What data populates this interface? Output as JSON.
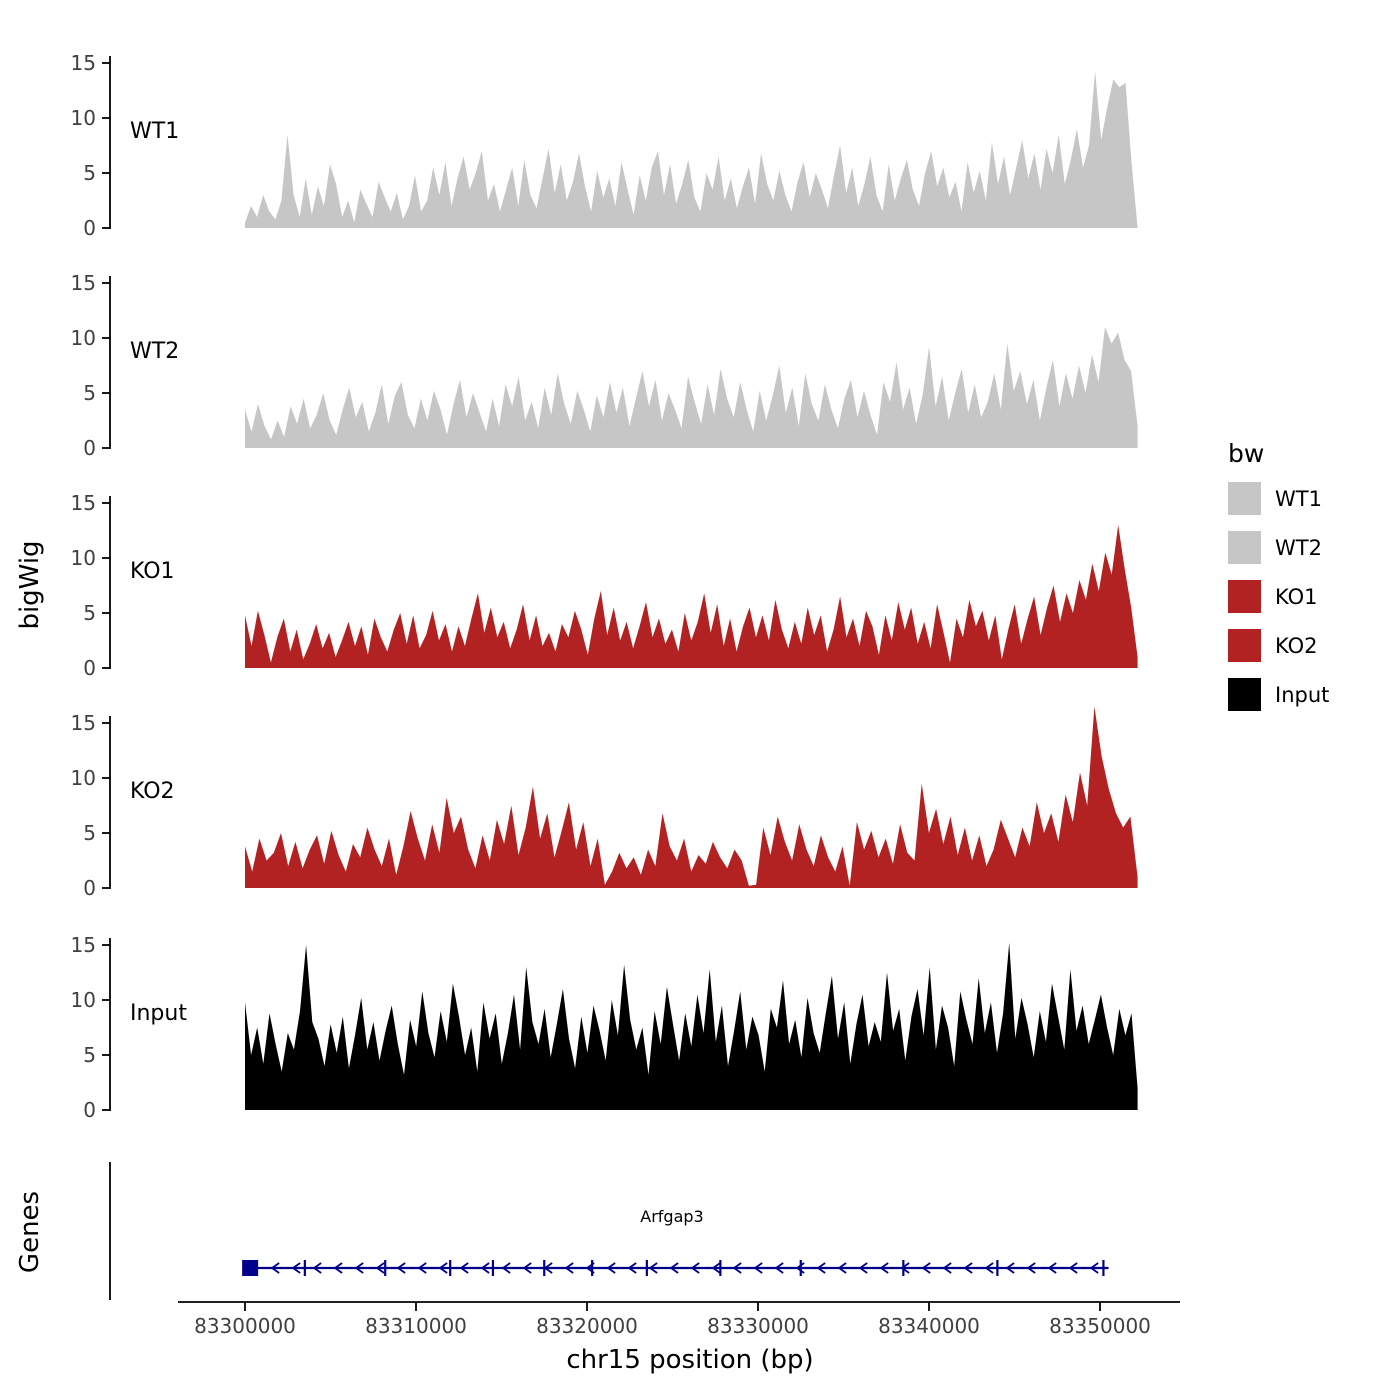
{
  "figure": {
    "y_axis_title": "bigWig",
    "genes_axis_title": "Genes",
    "x_axis_title": "chr15 position (bp)",
    "gene_label": "Arfgap3"
  },
  "legend": {
    "title": "bw",
    "items": [
      {
        "label": "WT1",
        "color": "#c6c6c6"
      },
      {
        "label": "WT2",
        "color": "#c6c6c6"
      },
      {
        "label": "KO1",
        "color": "#b22222"
      },
      {
        "label": "KO2",
        "color": "#b22222"
      },
      {
        "label": "Input",
        "color": "#000000"
      }
    ]
  },
  "x_axis": {
    "ticks": [
      {
        "bp": 83300000,
        "label": "83300000"
      },
      {
        "bp": 83310000,
        "label": "83310000"
      },
      {
        "bp": 83320000,
        "label": "83320000"
      },
      {
        "bp": 83330000,
        "label": "83330000"
      },
      {
        "bp": 83340000,
        "label": "83340000"
      },
      {
        "bp": 83350000,
        "label": "83350000"
      }
    ]
  },
  "chart_data": {
    "type": "area",
    "title": "",
    "xlabel": "chr15 position (bp)",
    "ylabel": "bigWig",
    "x_range_bp": [
      83300000,
      83352200
    ],
    "y_ticks": [
      0,
      5,
      10,
      15
    ],
    "ylim": [
      0,
      16.5
    ],
    "tracks": [
      {
        "name": "WT1",
        "color": "#c6c6c6",
        "values": [
          0.5,
          2,
          1,
          3,
          1.5,
          0.8,
          2.5,
          8.5,
          3,
          1,
          4.5,
          1.2,
          3.8,
          2,
          5.8,
          4,
          1,
          2.5,
          0.5,
          3.5,
          2.2,
          1,
          4.2,
          2.8,
          1.5,
          3.2,
          0.8,
          2,
          4.8,
          1.5,
          2.5,
          5.5,
          3,
          6,
          2,
          4.5,
          6.5,
          3.5,
          5,
          7,
          2.5,
          4,
          1.5,
          3.5,
          5.5,
          2,
          6.2,
          3,
          1.8,
          4.5,
          7.2,
          3.2,
          5.8,
          2.5,
          4.2,
          6.8,
          3.8,
          1.5,
          5.2,
          2.8,
          4.5,
          2,
          6,
          3.5,
          1.2,
          4.8,
          2.5,
          5.5,
          7,
          3,
          5.8,
          2.2,
          4,
          6.2,
          2.8,
          1.5,
          5,
          3.5,
          6.5,
          2.5,
          4.5,
          1.8,
          3.8,
          5.5,
          2.2,
          6.8,
          4,
          2.5,
          5.2,
          3,
          1.5,
          4.2,
          6,
          2.8,
          5,
          3.5,
          1.8,
          4.8,
          7.5,
          3.2,
          5.5,
          2,
          4,
          6.5,
          3,
          1.5,
          5.8,
          2.5,
          4.5,
          6.2,
          3.5,
          2,
          5,
          7,
          3.8,
          5.5,
          2.8,
          4.2,
          1.5,
          6,
          3.2,
          5.2,
          2.5,
          7.8,
          4,
          6.5,
          3,
          5.5,
          8,
          4.5,
          6.8,
          3.5,
          7.2,
          5,
          8.5,
          4,
          6.2,
          9,
          5.5,
          7.5,
          14.3,
          8,
          11,
          13.5,
          12.8,
          13.2,
          6,
          0
        ]
      },
      {
        "name": "WT2",
        "color": "#c6c6c6",
        "values": [
          3.5,
          1.5,
          4,
          2,
          0.8,
          2.5,
          1,
          3.8,
          2.2,
          4.5,
          1.8,
          3,
          5,
          2.5,
          1.2,
          3.5,
          5.5,
          2.8,
          4.2,
          1.5,
          3.2,
          5.8,
          2.2,
          4.8,
          6,
          3,
          1.8,
          4.5,
          2.5,
          5.2,
          3.5,
          1.2,
          4,
          6.2,
          2.8,
          5,
          3.2,
          1.5,
          4.5,
          2,
          5.8,
          3.8,
          6.5,
          2.5,
          4.2,
          1.8,
          5.5,
          3,
          6.8,
          4,
          2.2,
          5.2,
          3.5,
          1.5,
          4.8,
          2.8,
          6,
          3.2,
          5.5,
          2,
          4.5,
          7,
          3.8,
          6.2,
          2.5,
          5,
          3.5,
          1.8,
          6.5,
          4.2,
          2.2,
          5.8,
          3,
          7.2,
          4.5,
          2.8,
          6,
          3.5,
          1.5,
          5.2,
          2.5,
          4.8,
          7.5,
          3.2,
          5.5,
          2,
          6.8,
          4,
          2.5,
          5.8,
          3.5,
          1.8,
          4.5,
          6.2,
          2.8,
          5.2,
          3,
          1.2,
          6,
          4.2,
          7.8,
          3.5,
          5.5,
          2.2,
          4.8,
          9.2,
          3.8,
          6.5,
          2.5,
          5,
          7.2,
          3.2,
          5.8,
          2.8,
          4.2,
          6.8,
          3.5,
          9.5,
          5.2,
          7,
          4,
          6.2,
          2.5,
          5.5,
          8,
          3.8,
          6.8,
          4.5,
          7.5,
          5,
          8.5,
          6,
          11,
          9.5,
          10.5,
          8,
          7,
          2
        ]
      },
      {
        "name": "KO1",
        "color": "#b22222",
        "values": [
          4.8,
          2,
          5.2,
          3,
          0.5,
          2.8,
          4.5,
          1.5,
          3.5,
          0.8,
          2.2,
          4,
          1.8,
          3.2,
          1,
          2.5,
          4.2,
          2,
          3.8,
          1.2,
          4.5,
          2.8,
          1.5,
          3.5,
          5,
          2.2,
          4.8,
          1.8,
          3,
          5.2,
          2.5,
          4,
          1.5,
          3.8,
          2,
          4.5,
          6.8,
          3.2,
          5.5,
          2.8,
          4.2,
          1.8,
          3.5,
          5.8,
          2.5,
          4.8,
          2,
          3.2,
          1.5,
          4,
          2.8,
          5.2,
          3.5,
          1.2,
          4.5,
          7,
          3,
          5.5,
          2.5,
          4.2,
          1.8,
          3.8,
          6,
          2.8,
          4.5,
          2.2,
          3.5,
          1.5,
          5,
          2.5,
          4.2,
          6.8,
          3.2,
          5.8,
          2,
          4.5,
          1.5,
          3.8,
          5.5,
          2.8,
          4.8,
          2.5,
          6.2,
          3.5,
          1.8,
          4.2,
          2.2,
          5.5,
          3,
          4.8,
          1.5,
          3.5,
          6.5,
          2.8,
          4.5,
          2,
          5.2,
          3.8,
          1.2,
          4.8,
          2.5,
          6,
          3.5,
          5.5,
          2.2,
          4.2,
          1.8,
          5.8,
          3.2,
          0.5,
          4.5,
          2.8,
          6.2,
          3.8,
          5.2,
          2.5,
          4.8,
          0.8,
          3.5,
          5.8,
          2.2,
          4.5,
          6.5,
          3,
          5.5,
          7.5,
          4.2,
          6.8,
          5,
          8,
          6.2,
          9.5,
          7,
          10.5,
          8.5,
          13,
          9,
          5.5,
          1
        ]
      },
      {
        "name": "KO2",
        "color": "#b22222",
        "values": [
          3.8,
          1.5,
          4.5,
          2.5,
          3.2,
          5,
          2,
          4.2,
          1.8,
          3.5,
          4.8,
          2.2,
          5.2,
          3,
          1.5,
          4,
          2.8,
          5.5,
          3.5,
          2,
          4.5,
          1.2,
          3.8,
          7,
          4.5,
          2.5,
          5.8,
          3.2,
          8.2,
          5,
          6.5,
          3.5,
          1.8,
          4.8,
          2.5,
          6.2,
          4,
          7.5,
          3,
          5.5,
          9.2,
          4.5,
          6.8,
          2.8,
          5.2,
          7.8,
          3.5,
          6,
          2,
          4.5,
          0.3,
          1.5,
          3.2,
          1.8,
          2.8,
          1.2,
          3.5,
          2,
          6.8,
          3.8,
          2.5,
          4.5,
          1.5,
          3,
          2.2,
          4.2,
          2.8,
          1.8,
          3.5,
          2.5,
          0.2,
          0.3,
          5.5,
          3,
          6.5,
          4.2,
          2.5,
          5.8,
          3.5,
          2,
          4.8,
          2.8,
          1.5,
          3.8,
          0.2,
          6,
          3.5,
          5.2,
          2.8,
          4.5,
          2.2,
          5.8,
          3.2,
          2.5,
          9.5,
          5,
          7.2,
          4,
          6.5,
          3,
          5.5,
          2.5,
          4.8,
          2,
          3.5,
          6.2,
          4.5,
          2.8,
          5.5,
          3.8,
          7.8,
          5,
          6.8,
          4.2,
          8.5,
          6,
          10.5,
          7.5,
          16.5,
          12,
          9,
          6.8,
          5.5,
          6.5,
          1
        ]
      },
      {
        "name": "Input",
        "color": "#000000",
        "values": [
          9.8,
          5,
          7.5,
          4.2,
          8.8,
          6,
          3.5,
          7,
          5.5,
          9,
          15,
          8,
          6.5,
          4,
          7.8,
          5.2,
          8.5,
          3.8,
          6.8,
          10.2,
          5.5,
          8,
          4.5,
          7.2,
          9.5,
          6,
          3.2,
          8.2,
          5.8,
          10.8,
          7,
          4.8,
          9,
          6.2,
          11.5,
          8.5,
          5,
          7.5,
          3.5,
          9.8,
          6.5,
          8.8,
          4.2,
          7,
          10.5,
          5.5,
          13,
          8,
          6,
          9.2,
          4.8,
          7.8,
          11,
          6.5,
          3.8,
          8.5,
          5.2,
          9.5,
          7.2,
          4.5,
          10,
          6.8,
          13.2,
          8.2,
          5.5,
          7.5,
          3.2,
          9,
          6,
          11.2,
          7.8,
          4.5,
          8.8,
          5.8,
          10.5,
          7,
          12.8,
          6.2,
          9.5,
          4,
          7.2,
          10.8,
          5.5,
          8.5,
          6.8,
          3.5,
          9.2,
          7.5,
          11.8,
          6,
          8.2,
          4.8,
          10.2,
          7,
          5.2,
          8.8,
          12.2,
          6.5,
          9.8,
          4.2,
          7.8,
          10.5,
          5.8,
          8,
          6.2,
          12.5,
          7.2,
          9.2,
          4.5,
          8.5,
          11,
          6.8,
          13,
          5.5,
          9.5,
          7.5,
          4,
          10.8,
          8.2,
          6,
          12,
          7,
          9.8,
          5.2,
          8.8,
          15.2,
          6.5,
          10.2,
          7.8,
          4.8,
          9,
          6.2,
          11.5,
          8.5,
          5.5,
          12.8,
          7.2,
          9.5,
          6,
          8.2,
          10.5,
          7.5,
          5,
          9.2,
          6.8,
          8.8,
          2
        ]
      }
    ],
    "gene_track": {
      "name": "Arfgap3",
      "color": "#00008B",
      "strand": "-",
      "start_bp": 83300300,
      "end_bp": 83350500,
      "exon_ticks_bp": [
        83303500,
        83308200,
        83312000,
        83314500,
        83317500,
        83320300,
        83323500,
        83327800,
        83332500,
        83338500,
        83344000,
        83350200
      ]
    }
  }
}
